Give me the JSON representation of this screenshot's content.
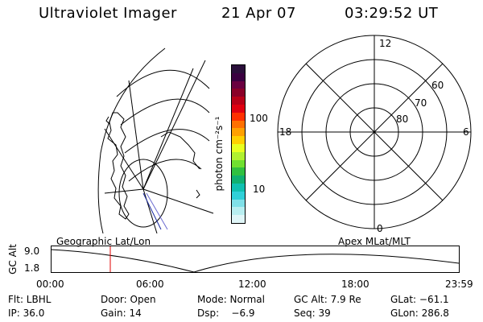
{
  "header": {
    "title": "Ultraviolet Imager",
    "date": "21 Apr 07",
    "time": "03:29:52 UT"
  },
  "colorbar": {
    "unit_label": "photon cm⁻²s⁻¹",
    "tick_100": "100",
    "tick_10": "10",
    "colors": [
      "#2a0f3a",
      "#3a0040",
      "#6a0040",
      "#8a0028",
      "#b80018",
      "#e00010",
      "#ff3000",
      "#ff7000",
      "#ffa000",
      "#ffd000",
      "#e8ff20",
      "#b0f030",
      "#70e030",
      "#30c040",
      "#10b070",
      "#10c0b0",
      "#30d0d8",
      "#80e0e8",
      "#b8eef0",
      "#e0f6f8"
    ]
  },
  "polar": {
    "mlt_12": "12",
    "mlt_18": "18",
    "mlt_6": "6",
    "mlt_0": "0",
    "lat_60": "60",
    "lat_70": "70",
    "lat_80": "80"
  },
  "timeline": {
    "left_title": "Geographic Lat/Lon",
    "right_title": "Apex MLat/MLT",
    "y_label": "GC Alt",
    "y_top": "9.0",
    "y_bottom": "1.8",
    "ticks": [
      "00:00",
      "06:00",
      "12:00",
      "18:00",
      "23:59"
    ],
    "current_time_fraction": 0.146
  },
  "info": {
    "flt": "Flt: LBHL",
    "door": "Door: Open",
    "mode": "Mode: Normal",
    "gcalt": "GC Alt: 7.9 Re",
    "glat": "GLat: −61.1",
    "ip": "IP: 36.0",
    "gain": "Gain: 14",
    "dsp": "Dsp:    −6.9",
    "seq": "Seq: 39",
    "glon": "GLon: 286.8"
  }
}
